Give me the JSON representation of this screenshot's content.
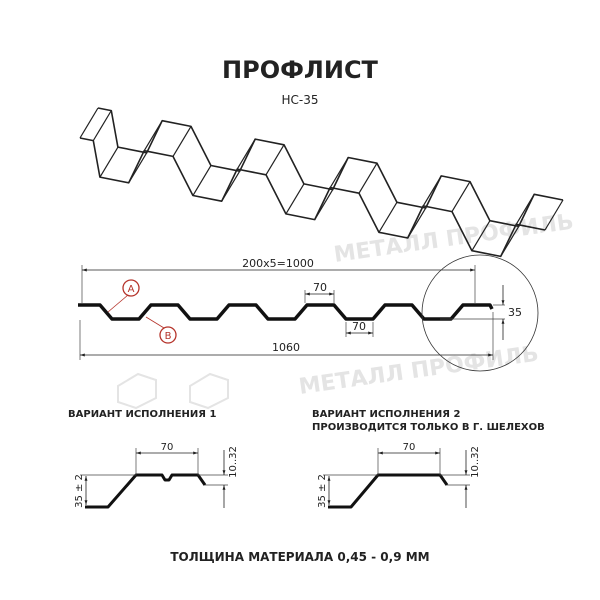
{
  "header": {
    "title": "ПРОФЛИСТ",
    "subtitle": "НС-35"
  },
  "watermark": "МЕТАЛЛ ПРОФИЛЬ",
  "profile": {
    "pitch_label": "200x5=1000",
    "width_label": "1060",
    "crest_label": "70",
    "trough_label": "70",
    "height_label": "35",
    "marker_a": "A",
    "marker_b": "B",
    "marker_color": "#b5332a"
  },
  "variant1": {
    "title": "ВАРИАНТ ИСПОЛНЕНИЯ 1",
    "width_label": "70",
    "height_label": "35 ± 2",
    "step_label": "10..32"
  },
  "variant2": {
    "title": "ВАРИАНТ ИСПОЛНЕНИЯ 2",
    "note": "ПРОИЗВОДИТСЯ ТОЛЬКО В Г. ШЕЛЕХОВ",
    "width_label": "70",
    "height_label": "35 ± 2",
    "step_label": "10..32"
  },
  "footer": {
    "thickness": "ТОЛЩИНА МАТЕРИАЛА 0,45 - 0,9 ММ"
  }
}
